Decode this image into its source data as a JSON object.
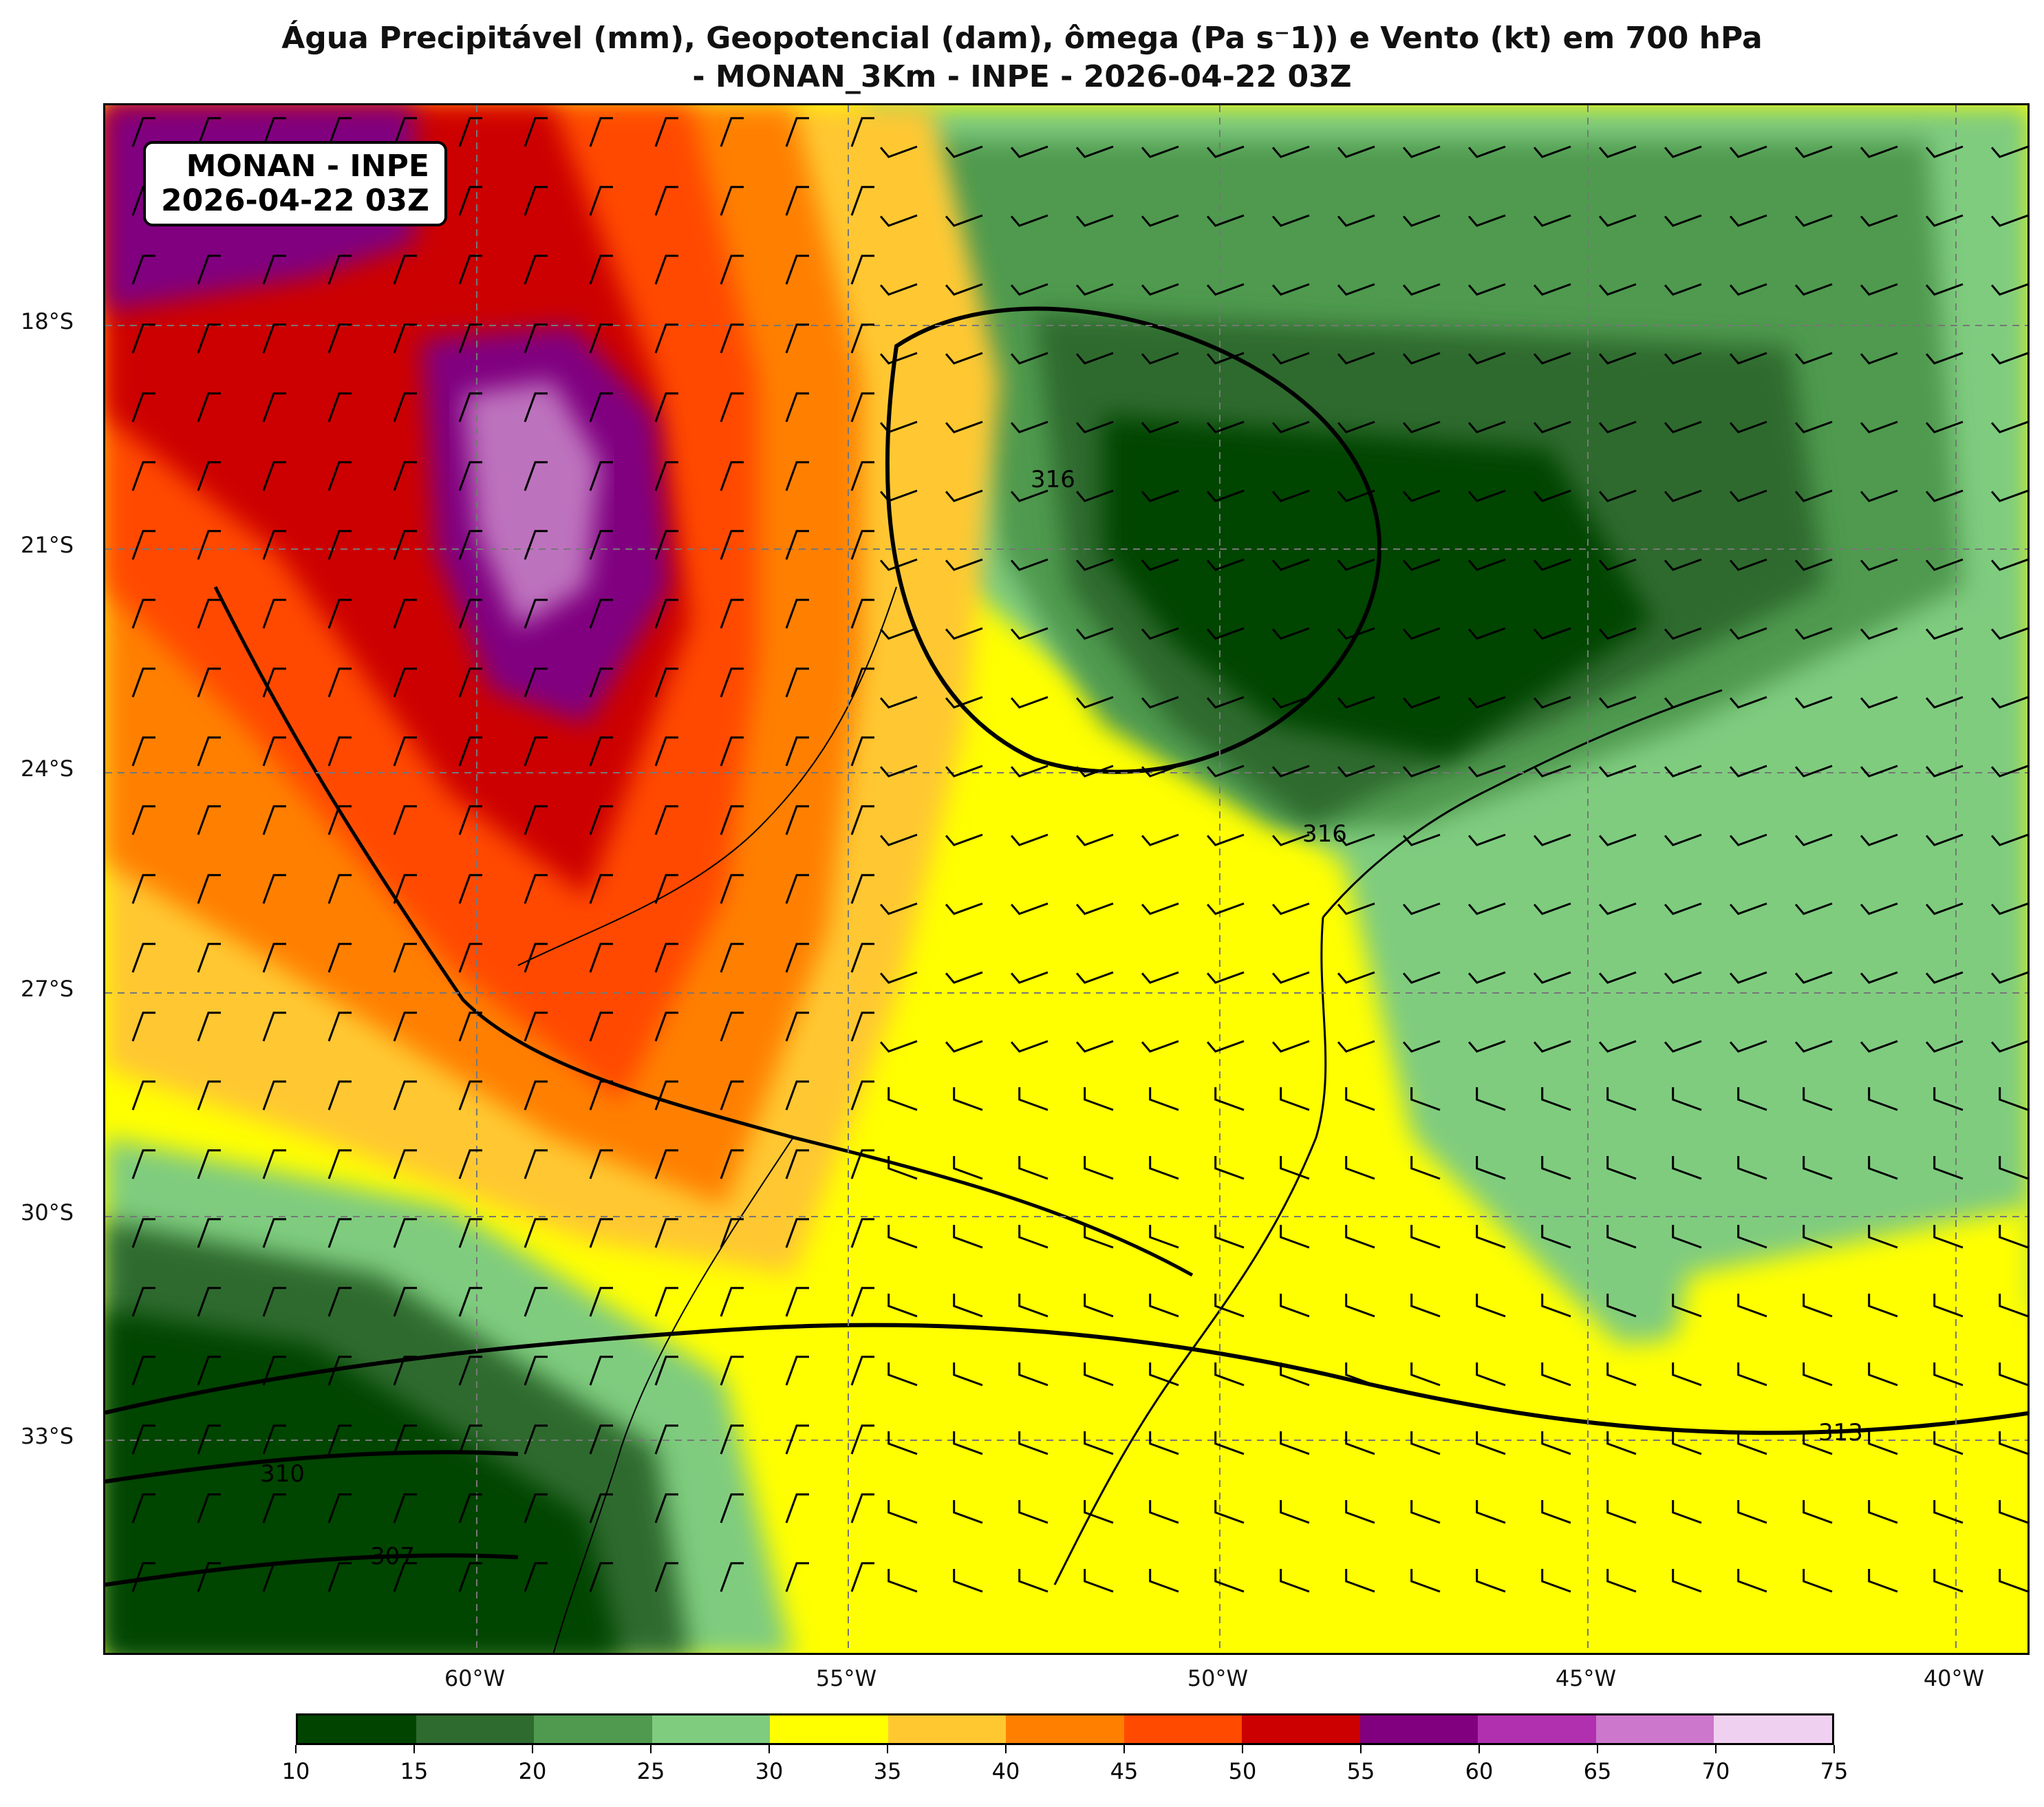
{
  "title": {
    "line1": "Água Precipitável (mm), Geopotencial (dam), ômega (Pa s⁻1)) e Vento (kt) em 700 hPa",
    "line2": "- MONAN_3Km - INPE - 2026-04-22 03Z"
  },
  "badge": {
    "line1": "MONAN - INPE",
    "line2": "2026-04-22 03Z"
  },
  "lat_labels": [
    "18°S",
    "21°S",
    "24°S",
    "27°S",
    "30°S",
    "33°S"
  ],
  "lon_labels": [
    "60°W",
    "55°W",
    "50°W",
    "45°W",
    "40°W"
  ],
  "contour_labels": [
    "316",
    "316",
    "313",
    "310",
    "307"
  ],
  "colorbar": {
    "ticks": [
      "10",
      "15",
      "20",
      "25",
      "30",
      "35",
      "40",
      "45",
      "50",
      "55",
      "60",
      "65",
      "70",
      "75"
    ],
    "colors": [
      "#004400",
      "#2e6b2e",
      "#4f9a4f",
      "#7fcc7f",
      "#ffff00",
      "#ffc830",
      "#ff8000",
      "#ff4a00",
      "#cc0000",
      "#800080",
      "#b030b0",
      "#cc77cc",
      "#f0d0f0"
    ]
  },
  "colors": {
    "dark_green": "#004400",
    "green": "#4f9a4f",
    "light_green": "#7fcc7f",
    "yellow": "#ffff00",
    "gold": "#ffc830",
    "orange": "#ff8000",
    "red_orange": "#ff4a00",
    "red": "#cc0000",
    "purple": "#800080"
  }
}
